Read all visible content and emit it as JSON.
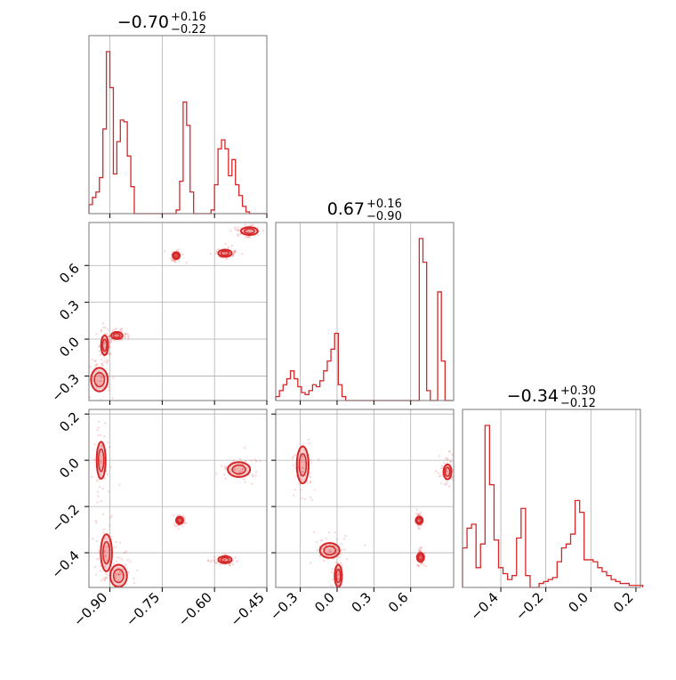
{
  "figure": {
    "type": "corner",
    "series_color": "#d62728",
    "grid": true
  },
  "titles": [
    {
      "value": "−0.70",
      "upper": "+0.16",
      "lower": "−0.22"
    },
    {
      "value": "0.67",
      "upper": "+0.16",
      "lower": "−0.90"
    },
    {
      "value": "−0.34",
      "upper": "+0.30",
      "lower": "−0.12"
    }
  ],
  "chart_data": [
    {
      "type": "histogram",
      "panel": "p0-marginal",
      "xlim": [
        -0.96,
        -0.45
      ],
      "bins_x": [
        -0.96,
        -0.95,
        -0.94,
        -0.93,
        -0.92,
        -0.91,
        -0.9,
        -0.89,
        -0.88,
        -0.87,
        -0.86,
        -0.85,
        -0.84,
        -0.83,
        -0.82,
        -0.81,
        -0.8,
        -0.79,
        -0.78,
        -0.77,
        -0.76,
        -0.75,
        -0.74,
        -0.73,
        -0.72,
        -0.71,
        -0.7,
        -0.69,
        -0.68,
        -0.67,
        -0.66,
        -0.65,
        -0.64,
        -0.63,
        -0.62,
        -0.61,
        -0.6,
        -0.59,
        -0.58,
        -0.57,
        -0.56,
        -0.55,
        -0.54,
        -0.53,
        -0.52,
        -0.51,
        -0.5,
        -0.49,
        -0.48,
        -0.47,
        -0.46
      ],
      "counts": [
        0.05,
        0.09,
        0.12,
        0.2,
        0.47,
        0.9,
        0.7,
        0.22,
        0.4,
        0.52,
        0.51,
        0.32,
        0.15,
        0,
        0,
        0,
        0,
        0,
        0,
        0,
        0,
        0,
        0,
        0,
        0,
        0.02,
        0.18,
        0.62,
        0.49,
        0.12,
        0,
        0,
        0,
        0,
        0,
        0.02,
        0.16,
        0.36,
        0.41,
        0.36,
        0.21,
        0.3,
        0.16,
        0.1,
        0.04,
        0.01,
        0,
        0,
        0,
        0,
        0
      ]
    },
    {
      "type": "histogram",
      "panel": "p1-marginal",
      "xlim": [
        -0.5,
        0.95
      ],
      "bins_x": [
        -0.5,
        -0.47,
        -0.44,
        -0.41,
        -0.38,
        -0.35,
        -0.32,
        -0.29,
        -0.26,
        -0.23,
        -0.2,
        -0.17,
        -0.14,
        -0.11,
        -0.08,
        -0.05,
        -0.02,
        0.01,
        0.04,
        0.07,
        0.1,
        0.13,
        0.16,
        0.19,
        0.22,
        0.25,
        0.28,
        0.31,
        0.34,
        0.37,
        0.4,
        0.43,
        0.46,
        0.49,
        0.52,
        0.55,
        0.58,
        0.61,
        0.64,
        0.67,
        0.7,
        0.73,
        0.76,
        0.79,
        0.82,
        0.85,
        0.88,
        0.91
      ],
      "counts": [
        0.02,
        0.05,
        0.08,
        0.11,
        0.15,
        0.11,
        0.07,
        0.04,
        0.03,
        0.05,
        0.08,
        0.07,
        0.1,
        0.15,
        0.2,
        0.26,
        0.34,
        0.08,
        0.02,
        0,
        0,
        0,
        0,
        0,
        0,
        0,
        0,
        0,
        0,
        0,
        0,
        0,
        0,
        0,
        0,
        0,
        0,
        0,
        0,
        0.82,
        0.7,
        0.05,
        0,
        0,
        0.55,
        0.2,
        0,
        0
      ]
    },
    {
      "type": "histogram",
      "panel": "p2-marginal",
      "xlim": [
        -0.57,
        0.22
      ],
      "bins_x": [
        -0.57,
        -0.55,
        -0.53,
        -0.51,
        -0.49,
        -0.47,
        -0.45,
        -0.43,
        -0.41,
        -0.39,
        -0.37,
        -0.35,
        -0.33,
        -0.31,
        -0.29,
        -0.27,
        -0.25,
        -0.23,
        -0.21,
        -0.19,
        -0.17,
        -0.15,
        -0.13,
        -0.11,
        -0.09,
        -0.07,
        -0.05,
        -0.03,
        -0.01,
        0.01,
        0.03,
        0.05,
        0.07,
        0.09,
        0.11,
        0.13,
        0.15,
        0.17,
        0.19,
        0.21
      ],
      "counts": [
        0.2,
        0.3,
        0.32,
        0.1,
        0.22,
        0.82,
        0.52,
        0.24,
        0.1,
        0.07,
        0.04,
        0.06,
        0.25,
        0.4,
        0.06,
        0,
        0,
        0.02,
        0.03,
        0.04,
        0.05,
        0.13,
        0.2,
        0.22,
        0.27,
        0.44,
        0.38,
        0.14,
        0.14,
        0.13,
        0.1,
        0.08,
        0.06,
        0.04,
        0.03,
        0.02,
        0.02,
        0.01,
        0.01,
        0.01
      ]
    },
    {
      "type": "scatter",
      "panel": "p0-p1",
      "xlim": [
        -0.96,
        -0.45
      ],
      "ylim": [
        -0.5,
        0.95
      ],
      "clusters": [
        {
          "x": -0.71,
          "y": 0.68,
          "sx": 0.005,
          "sy": 0.015
        },
        {
          "x": -0.57,
          "y": 0.7,
          "sx": 0.012,
          "sy": 0.015
        },
        {
          "x": -0.5,
          "y": 0.88,
          "sx": 0.015,
          "sy": 0.02
        },
        {
          "x": -0.915,
          "y": -0.05,
          "sx": 0.006,
          "sy": 0.05
        },
        {
          "x": -0.88,
          "y": 0.03,
          "sx": 0.01,
          "sy": 0.015
        },
        {
          "x": -0.93,
          "y": -0.33,
          "sx": 0.015,
          "sy": 0.06
        }
      ]
    },
    {
      "type": "scatter",
      "panel": "p0-p2",
      "xlim": [
        -0.96,
        -0.45
      ],
      "ylim": [
        -0.55,
        0.22
      ],
      "clusters": [
        {
          "x": -0.925,
          "y": 0.0,
          "sx": 0.008,
          "sy": 0.05
        },
        {
          "x": -0.53,
          "y": -0.04,
          "sx": 0.02,
          "sy": 0.02
        },
        {
          "x": -0.7,
          "y": -0.26,
          "sx": 0.005,
          "sy": 0.01
        },
        {
          "x": -0.57,
          "y": -0.43,
          "sx": 0.012,
          "sy": 0.008
        },
        {
          "x": -0.91,
          "y": -0.4,
          "sx": 0.01,
          "sy": 0.05
        },
        {
          "x": -0.875,
          "y": -0.5,
          "sx": 0.015,
          "sy": 0.03
        }
      ]
    },
    {
      "type": "scatter",
      "panel": "p1-p2",
      "xlim": [
        -0.5,
        0.95
      ],
      "ylim": [
        -0.55,
        0.22
      ],
      "clusters": [
        {
          "x": -0.28,
          "y": -0.02,
          "sx": 0.03,
          "sy": 0.05
        },
        {
          "x": 0.9,
          "y": -0.05,
          "sx": 0.02,
          "sy": 0.02
        },
        {
          "x": 0.67,
          "y": -0.26,
          "sx": 0.008,
          "sy": 0.01
        },
        {
          "x": 0.68,
          "y": -0.42,
          "sx": 0.01,
          "sy": 0.012
        },
        {
          "x": -0.06,
          "y": -0.39,
          "sx": 0.05,
          "sy": 0.02
        },
        {
          "x": 0.01,
          "y": -0.5,
          "sx": 0.015,
          "sy": 0.03
        }
      ]
    }
  ],
  "axes": {
    "x0_ticks": [
      "−0.90",
      "−0.75",
      "−0.60",
      "−0.45"
    ],
    "x0_tick_values": [
      -0.9,
      -0.75,
      -0.6,
      -0.45
    ],
    "x1_ticks": [
      "−0.3",
      "0.0",
      "0.3",
      "0.6"
    ],
    "x1_tick_values": [
      -0.3,
      0.0,
      0.3,
      0.6
    ],
    "x2_ticks": [
      "−0.4",
      "−0.2",
      "0.0",
      "0.2"
    ],
    "x2_tick_values": [
      -0.4,
      -0.2,
      0.0,
      0.2
    ],
    "y1_ticks": [
      "−0.3",
      "0.0",
      "0.3",
      "0.6"
    ],
    "y1_tick_values": [
      -0.3,
      0.0,
      0.3,
      0.6
    ],
    "y2_ticks": [
      "−0.4",
      "−0.2",
      "0.0",
      "0.2"
    ],
    "y2_tick_values": [
      -0.4,
      -0.2,
      0.0,
      0.2
    ]
  }
}
